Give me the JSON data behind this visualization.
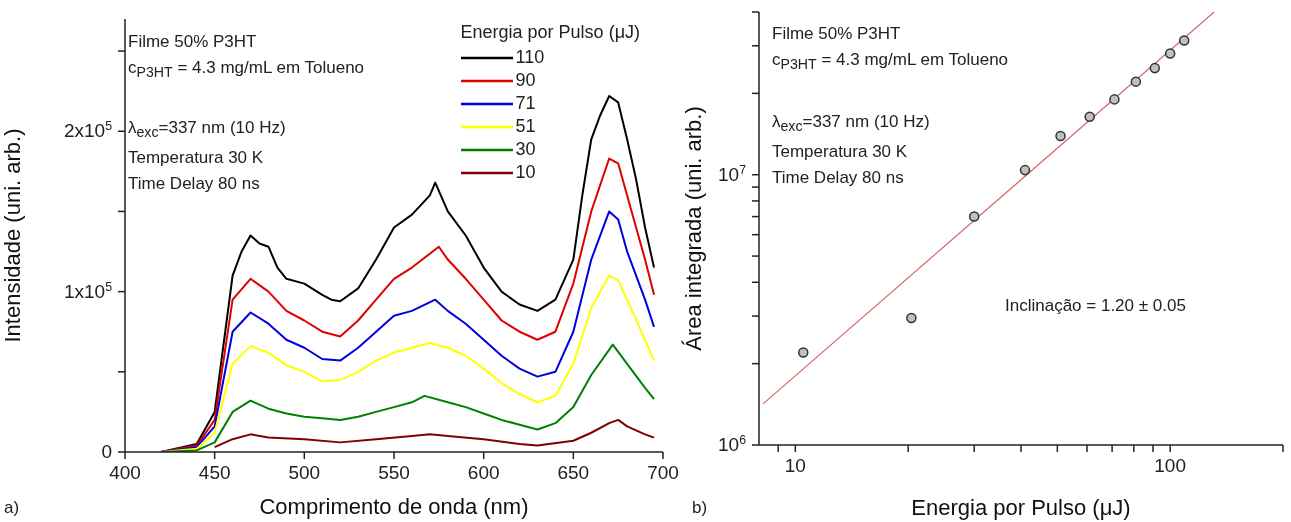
{
  "chart_data": [
    {
      "type": "line",
      "xlabel": "Comprimento de onda (nm)",
      "ylabel": "Intensidade (uni. arb.)",
      "legend_title": "Energia por Pulso (μJ)",
      "legend": "top right",
      "marker": "none",
      "line_style": "solid",
      "xlim": [
        400,
        700
      ],
      "xticks": [
        400,
        450,
        500,
        550,
        600,
        650,
        700
      ],
      "ylim": [
        0,
        270000
      ],
      "yticks": [
        0,
        {
          "value": 50000,
          "label": null
        },
        {
          "value": 100000,
          "label": "1x10$^{5}$"
        },
        {
          "value": 150000,
          "label": null
        },
        {
          "value": 200000,
          "label": "2x10$^{5}$"
        },
        {
          "value": 250000,
          "label": null
        }
      ],
      "annotations": [
        "Filme 50% P3HT",
        "c$_{P3HT}$ = 4.3 mg/mL em Tolueno",
        "λ$_{exc}$=337 nm (10 Hz)",
        "Temperatura 30 K",
        "Time Delay 80 ns",
        "a)"
      ],
      "series": [
        {
          "name": "110",
          "color": "#000000",
          "x": [
            420,
            440,
            450,
            460,
            465,
            470,
            475,
            480,
            485,
            490,
            500,
            510,
            515,
            520,
            530,
            540,
            550,
            560,
            570,
            573,
            580,
            590,
            600,
            610,
            620,
            630,
            640,
            650,
            655,
            660,
            665,
            670,
            675,
            680,
            685,
            690,
            695
          ],
          "values": [
            0,
            5000,
            25000,
            110000,
            125000,
            135000,
            130000,
            128000,
            115000,
            108000,
            105000,
            98000,
            95000,
            94000,
            102000,
            120000,
            140000,
            148000,
            160000,
            168000,
            150000,
            135000,
            115000,
            100000,
            92000,
            88000,
            95000,
            120000,
            160000,
            195000,
            210000,
            222000,
            218000,
            195000,
            170000,
            140000,
            115000
          ]
        },
        {
          "name": "90",
          "color": "#e00000",
          "x": [
            420,
            440,
            450,
            460,
            470,
            480,
            490,
            500,
            510,
            520,
            530,
            540,
            550,
            560,
            575,
            580,
            590,
            600,
            610,
            620,
            630,
            640,
            650,
            660,
            670,
            675,
            680,
            690,
            695
          ],
          "values": [
            0,
            4000,
            20000,
            95000,
            108000,
            100000,
            88000,
            82000,
            75000,
            72000,
            82000,
            95000,
            108000,
            115000,
            128000,
            120000,
            108000,
            95000,
            82000,
            75000,
            70000,
            75000,
            105000,
            150000,
            183000,
            180000,
            160000,
            120000,
            98000
          ]
        },
        {
          "name": "71",
          "color": "#0000e0",
          "x": [
            420,
            440,
            450,
            460,
            470,
            480,
            490,
            500,
            510,
            520,
            530,
            540,
            550,
            560,
            573,
            580,
            590,
            600,
            610,
            620,
            630,
            640,
            650,
            660,
            670,
            675,
            680,
            690,
            695
          ],
          "values": [
            0,
            3000,
            16000,
            75000,
            87000,
            80000,
            70000,
            65000,
            58000,
            57000,
            65000,
            75000,
            85000,
            88000,
            95000,
            88000,
            80000,
            70000,
            60000,
            52000,
            47000,
            50000,
            75000,
            120000,
            150000,
            145000,
            125000,
            95000,
            78000
          ]
        },
        {
          "name": "51",
          "color": "#ffff00",
          "x": [
            420,
            440,
            450,
            460,
            470,
            480,
            490,
            500,
            510,
            520,
            530,
            540,
            550,
            560,
            570,
            580,
            590,
            600,
            610,
            620,
            630,
            640,
            650,
            660,
            670,
            675,
            680,
            690,
            695
          ],
          "values": [
            0,
            2000,
            12000,
            55000,
            66000,
            62000,
            54000,
            50000,
            44000,
            45000,
            50000,
            57000,
            62000,
            65000,
            68000,
            65000,
            60000,
            52000,
            43000,
            36000,
            31000,
            35000,
            55000,
            90000,
            110000,
            107000,
            95000,
            70000,
            57000
          ]
        },
        {
          "name": "30",
          "color": "#008000",
          "x": [
            420,
            440,
            450,
            460,
            470,
            480,
            490,
            500,
            510,
            520,
            530,
            540,
            550,
            560,
            567,
            580,
            590,
            600,
            610,
            620,
            630,
            640,
            650,
            660,
            672,
            680,
            690,
            695
          ],
          "values": [
            0,
            1000,
            6000,
            25000,
            32000,
            27000,
            24000,
            22000,
            21000,
            20000,
            22000,
            25000,
            28000,
            31000,
            35000,
            31000,
            28000,
            24000,
            20000,
            17000,
            14000,
            18000,
            28000,
            48000,
            67000,
            55000,
            40000,
            33000
          ]
        },
        {
          "name": "10",
          "color": "#800000",
          "x": [
            450,
            460,
            470,
            480,
            500,
            520,
            540,
            560,
            570,
            580,
            600,
            620,
            630,
            650,
            660,
            670,
            675,
            680,
            690,
            695
          ],
          "values": [
            3000,
            8000,
            11000,
            9000,
            8000,
            6000,
            8000,
            10000,
            11000,
            10000,
            8000,
            5000,
            4000,
            7000,
            12000,
            18000,
            20000,
            16000,
            11000,
            9000
          ]
        }
      ]
    },
    {
      "type": "scatter",
      "xlabel": "Energia por Pulso (μJ)",
      "ylabel": "Área integrada (uni. arb.)",
      "log": "xy",
      "xlim": [
        8,
        200
      ],
      "xticks": [
        {
          "value": 9,
          "label": null
        },
        10,
        {
          "value": 20,
          "label": null
        },
        {
          "value": 30,
          "label": null
        },
        {
          "value": 40,
          "label": null
        },
        {
          "value": 50,
          "label": null
        },
        {
          "value": 60,
          "label": null
        },
        {
          "value": 70,
          "label": null
        },
        {
          "value": 80,
          "label": null
        },
        {
          "value": 90,
          "label": null
        },
        100,
        {
          "value": 200,
          "label": null
        }
      ],
      "ylim": [
        1000000,
        40000000
      ],
      "yticks": [
        {
          "value": 1000000,
          "label": "10$^{6}$"
        },
        {
          "value": 2000000,
          "label": null
        },
        {
          "value": 3000000,
          "label": null
        },
        {
          "value": 4000000,
          "label": null
        },
        {
          "value": 5000000,
          "label": null
        },
        {
          "value": 6000000,
          "label": null
        },
        {
          "value": 7000000,
          "label": null
        },
        {
          "value": 8000000,
          "label": null
        },
        {
          "value": 9000000,
          "label": null
        },
        {
          "value": 10000000,
          "label": "10$^{7}$"
        },
        {
          "value": 20000000,
          "label": null
        },
        {
          "value": 30000000,
          "label": null
        },
        {
          "value": 40000000,
          "label": null
        }
      ],
      "annotations": [
        "Filme 50% P3HT",
        "c$_{P3HT}$ = 4.3 mg/mL em Tolueno",
        "λ$_{exc}$=337 nm (10 Hz)",
        "Temperatura 30 K",
        "Time Delay 80 ns",
        "Inclinação = 1.20 ± 0.05",
        "b)"
      ],
      "series": [
        {
          "marker": "circle",
          "color": "#c0c0c0",
          "x": [
            10.5,
            20.4,
            30,
            41,
            51,
            61,
            71,
            81,
            91,
            100,
            109
          ],
          "values": [
            2200000,
            2950000,
            7000000,
            10400000,
            13900000,
            16400000,
            19000000,
            22100000,
            24800000,
            28100000,
            31400000
          ]
        },
        {
          "type": "line",
          "marker": "none",
          "color": "#d06a6a",
          "x": [
            8.2,
            131
          ],
          "values": [
            1420000,
            40000000
          ]
        }
      ]
    }
  ]
}
